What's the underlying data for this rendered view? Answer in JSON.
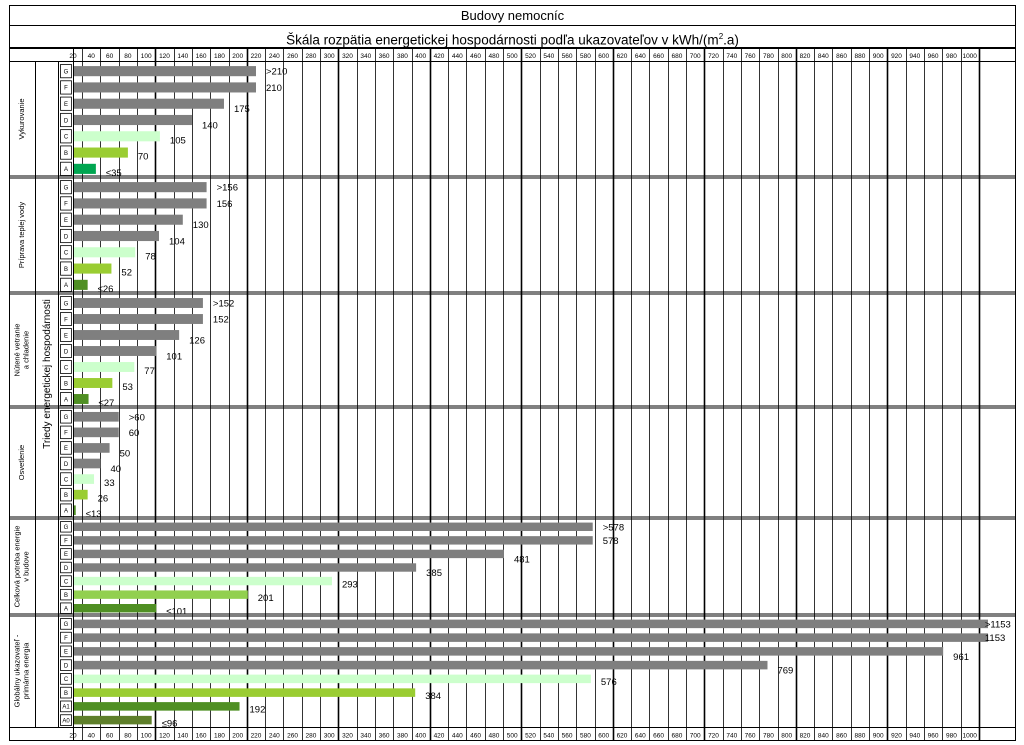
{
  "title": "Budovy nemocníc",
  "subtitle_prefix": "Škála rozpätia energetickej hospodárnosti podľa ukazovateľov v kWh/(m",
  "subtitle_sup": "2",
  "subtitle_suffix": ".a)",
  "y_axis_label": "Triedy energetickej hospodárnosti",
  "colors": {
    "grey": "#7f7f7f",
    "light_green": "#ccffcc",
    "mid_green": "#92d050",
    "bright_green": "#9acd32",
    "dark_green": "#4f8f23",
    "teal_green": "#00a651",
    "olive_green": "#5e7f2a"
  },
  "chart_data": {
    "type": "bar",
    "orientation": "horizontal",
    "x_ticks": [
      20,
      40,
      60,
      80,
      100,
      120,
      140,
      160,
      180,
      200,
      220,
      240,
      260,
      280,
      300,
      320,
      340,
      360,
      380,
      400,
      420,
      440,
      460,
      480,
      500,
      520,
      540,
      560,
      580,
      600,
      620,
      640,
      660,
      680,
      700,
      720,
      740,
      760,
      780,
      800,
      820,
      840,
      860,
      880,
      900,
      920,
      940,
      960,
      980,
      1000
    ],
    "xlim": [
      10,
      1010
    ],
    "grid": true,
    "groups": [
      {
        "name": "Vykurovanie",
        "classes": [
          {
            "label": "G",
            "value": 210,
            "text": ">210",
            "color": "grey"
          },
          {
            "label": "F",
            "value": 210,
            "text": "210",
            "color": "grey"
          },
          {
            "label": "E",
            "value": 175,
            "text": "175",
            "color": "grey"
          },
          {
            "label": "D",
            "value": 140,
            "text": "140",
            "color": "grey"
          },
          {
            "label": "C",
            "value": 105,
            "text": "105",
            "color": "light_green"
          },
          {
            "label": "B",
            "value": 70,
            "text": "70",
            "color": "bright_green"
          },
          {
            "label": "A",
            "value": 35,
            "text": "≤35",
            "color": "teal_green"
          }
        ]
      },
      {
        "name": "Príprava teplej vody",
        "classes": [
          {
            "label": "G",
            "value": 156,
            "text": ">156",
            "color": "grey"
          },
          {
            "label": "F",
            "value": 156,
            "text": "156",
            "color": "grey"
          },
          {
            "label": "E",
            "value": 130,
            "text": "130",
            "color": "grey"
          },
          {
            "label": "D",
            "value": 104,
            "text": "104",
            "color": "grey"
          },
          {
            "label": "C",
            "value": 78,
            "text": "78",
            "color": "light_green"
          },
          {
            "label": "B",
            "value": 52,
            "text": "52",
            "color": "bright_green"
          },
          {
            "label": "A",
            "value": 26,
            "text": "≤26",
            "color": "dark_green"
          }
        ]
      },
      {
        "name": "Nútené vetranie a chladenie",
        "classes": [
          {
            "label": "G",
            "value": 152,
            "text": ">152",
            "color": "grey"
          },
          {
            "label": "F",
            "value": 152,
            "text": "152",
            "color": "grey"
          },
          {
            "label": "E",
            "value": 126,
            "text": "126",
            "color": "grey"
          },
          {
            "label": "D",
            "value": 101,
            "text": "101",
            "color": "grey"
          },
          {
            "label": "C",
            "value": 77,
            "text": "77",
            "color": "light_green"
          },
          {
            "label": "B",
            "value": 53,
            "text": "53",
            "color": "bright_green"
          },
          {
            "label": "A",
            "value": 27,
            "text": "≤27",
            "color": "dark_green"
          }
        ]
      },
      {
        "name": "Osvetlenie",
        "classes": [
          {
            "label": "G",
            "value": 60,
            "text": ">60",
            "color": "grey"
          },
          {
            "label": "F",
            "value": 60,
            "text": "60",
            "color": "grey"
          },
          {
            "label": "E",
            "value": 50,
            "text": "50",
            "color": "grey"
          },
          {
            "label": "D",
            "value": 40,
            "text": "40",
            "color": "grey"
          },
          {
            "label": "C",
            "value": 33,
            "text": "33",
            "color": "light_green"
          },
          {
            "label": "B",
            "value": 26,
            "text": "26",
            "color": "bright_green"
          },
          {
            "label": "A",
            "value": 13,
            "text": "≤13",
            "color": "dark_green"
          }
        ]
      },
      {
        "name": "Celková potreba energie v budove",
        "classes": [
          {
            "label": "G",
            "value": 578,
            "text": ">578",
            "color": "grey"
          },
          {
            "label": "F",
            "value": 578,
            "text": "578",
            "color": "grey"
          },
          {
            "label": "E",
            "value": 481,
            "text": "481",
            "color": "grey"
          },
          {
            "label": "D",
            "value": 385,
            "text": "385",
            "color": "grey"
          },
          {
            "label": "C",
            "value": 293,
            "text": "293",
            "color": "light_green"
          },
          {
            "label": "B",
            "value": 201,
            "text": "201",
            "color": "mid_green"
          },
          {
            "label": "A",
            "value": 101,
            "text": "≤101",
            "color": "dark_green"
          }
        ]
      },
      {
        "name": "Globálny ukazovateľ - primárna energia",
        "classes": [
          {
            "label": "G",
            "value": 1153,
            "text": ">1153",
            "color": "grey"
          },
          {
            "label": "F",
            "value": 1153,
            "text": "1153",
            "color": "grey"
          },
          {
            "label": "E",
            "value": 961,
            "text": "961",
            "color": "grey"
          },
          {
            "label": "D",
            "value": 769,
            "text": "769",
            "color": "grey"
          },
          {
            "label": "C",
            "value": 576,
            "text": "576",
            "color": "light_green"
          },
          {
            "label": "B",
            "value": 384,
            "text": "384",
            "color": "bright_green"
          },
          {
            "label": "A1",
            "value": 192,
            "text": "192",
            "color": "dark_green"
          },
          {
            "label": "A0",
            "value": 96,
            "text": "≤96",
            "color": "olive_green"
          }
        ]
      }
    ]
  }
}
